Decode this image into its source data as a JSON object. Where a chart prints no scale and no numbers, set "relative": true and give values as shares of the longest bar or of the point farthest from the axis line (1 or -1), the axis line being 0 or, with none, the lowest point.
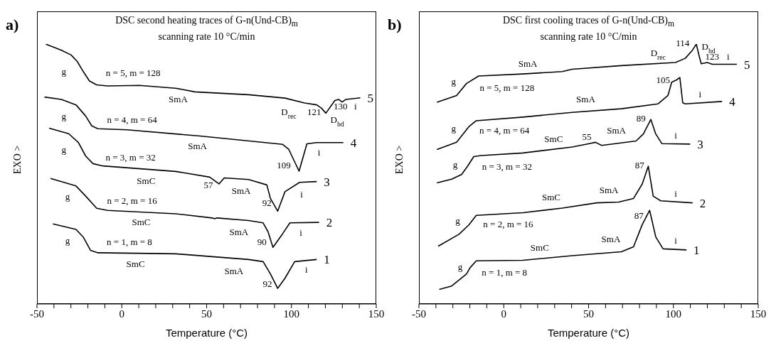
{
  "chart_data": [
    {
      "type": "line",
      "relative": true,
      "title": "DSC second heating traces of G-n(Und-CB)$_{m}$",
      "subtitle": "scanning rate 10 °C/min",
      "xlabel": "Temperature (°C)",
      "ylabel": "EXO >",
      "xlim": [
        -50,
        150
      ],
      "xticks": [
        -50,
        {
          "value": -40,
          "label": null
        },
        {
          "value": -30,
          "label": null
        },
        {
          "value": -20,
          "label": null
        },
        {
          "value": -10,
          "label": null
        },
        0,
        {
          "value": 10,
          "label": null
        },
        {
          "value": 20,
          "label": null
        },
        {
          "value": 30,
          "label": null
        },
        {
          "value": 40,
          "label": null
        },
        50,
        {
          "value": 60,
          "label": null
        },
        {
          "value": 70,
          "label": null
        },
        {
          "value": 80,
          "label": null
        },
        {
          "value": 90,
          "label": null
        },
        100,
        {
          "value": 110,
          "label": null
        },
        {
          "value": 120,
          "label": null
        },
        {
          "value": 130,
          "label": null
        },
        {
          "value": 140,
          "label": null
        },
        150
      ],
      "series": [
        {
          "name": "5",
          "color": "#000000",
          "x": [
            -44.9,
            -35.6,
            -29.9,
            -26.3,
            -22.7,
            -19.1,
            -14.8,
            -8.4,
            10.3,
            31.7,
            43.2,
            74.7,
            96.2,
            107.7,
            114.9,
            117.7,
            120.3,
            125.6,
            127.8,
            129.9,
            132.1,
            140.6
          ],
          "values": [
            1.0,
            0.976,
            0.958,
            0.933,
            0.894,
            0.858,
            0.843,
            0.839,
            0.841,
            0.83,
            0.816,
            0.805,
            0.792,
            0.773,
            0.766,
            0.753,
            0.734,
            0.783,
            0.787,
            0.777,
            0.787,
            0.793
          ]
        },
        {
          "name": "4",
          "color": "#000000",
          "x": [
            -45.6,
            -35.6,
            -27.0,
            -21.3,
            -17.7,
            -14.1,
            3.1,
            46.1,
            94.8,
            98.4,
            104.5,
            109.1,
            114.9,
            130.6
          ],
          "values": [
            0.796,
            0.787,
            0.766,
            0.723,
            0.685,
            0.674,
            0.67,
            0.646,
            0.614,
            0.595,
            0.511,
            0.616,
            0.621,
            0.621
          ]
        },
        {
          "name": "3",
          "color": "#000000",
          "x": [
            -42.8,
            -31.3,
            -25.6,
            -21.3,
            -17.0,
            -11.2,
            31.7,
            51.8,
            57.3,
            60.4,
            74.7,
            85.5,
            87.6,
            91.9,
            96.2,
            104.8,
            114.9
          ],
          "values": [
            0.676,
            0.655,
            0.621,
            0.569,
            0.54,
            0.531,
            0.51,
            0.488,
            0.462,
            0.485,
            0.479,
            0.458,
            0.406,
            0.357,
            0.432,
            0.468,
            0.471
          ]
        },
        {
          "name": "2",
          "color": "#000000",
          "x": [
            -42.0,
            -27.0,
            -21.3,
            -14.8,
            -8.4,
            31.7,
            53.2,
            54.7,
            56.1,
            74.7,
            83.3,
            86.2,
            89.1,
            94.8,
            99.1,
            116.3
          ],
          "values": [
            0.483,
            0.454,
            0.415,
            0.368,
            0.36,
            0.347,
            0.331,
            0.328,
            0.331,
            0.321,
            0.312,
            0.278,
            0.218,
            0.27,
            0.312,
            0.314
          ]
        },
        {
          "name": "1",
          "color": "#000000",
          "x": [
            -40.6,
            -27.0,
            -22.7,
            -18.4,
            -14.1,
            31.7,
            74.7,
            83.3,
            87.6,
            91.9,
            96.2,
            101.9,
            114.9
          ],
          "values": [
            0.308,
            0.287,
            0.257,
            0.206,
            0.197,
            0.193,
            0.171,
            0.163,
            0.116,
            0.06,
            0.099,
            0.163,
            0.171
          ]
        }
      ],
      "annotations": [
        "a)",
        "g",
        "g",
        "g",
        "g",
        "g",
        "n = 5, m = 128",
        "n = 4, m = 64",
        "n = 3, m = 32",
        "n = 2, m = 16",
        "n = 1, m = 8",
        "SmA",
        "SmA",
        "SmA",
        "SmA",
        "SmA",
        "SmC",
        "SmC",
        "SmC",
        "D$_{rec}$",
        "121",
        "130",
        "i",
        "D$_{hd}$",
        "109",
        "i",
        "57",
        "92",
        "i",
        "90",
        "i",
        "92",
        "i"
      ]
    },
    {
      "type": "line",
      "relative": true,
      "title": "DSC first cooling traces of G-n(Und-CB)$_{m}$",
      "subtitle": "scanning rate 10 °C/min",
      "xlabel": "Temperature (°C)",
      "ylabel": "EXO >",
      "xlim": [
        -50,
        150
      ],
      "xticks": [
        -50,
        {
          "value": -40,
          "label": null
        },
        {
          "value": -30,
          "label": null
        },
        {
          "value": -20,
          "label": null
        },
        {
          "value": -10,
          "label": null
        },
        0,
        {
          "value": 10,
          "label": null
        },
        {
          "value": 20,
          "label": null
        },
        {
          "value": 30,
          "label": null
        },
        {
          "value": 40,
          "label": null
        },
        50,
        {
          "value": 60,
          "label": null
        },
        {
          "value": 70,
          "label": null
        },
        {
          "value": 80,
          "label": null
        },
        {
          "value": 90,
          "label": null
        },
        100,
        {
          "value": 110,
          "label": null
        },
        {
          "value": 120,
          "label": null
        },
        {
          "value": 130,
          "label": null
        },
        {
          "value": 140,
          "label": null
        },
        150
      ],
      "series": [
        {
          "name": "5",
          "color": "#000000",
          "x": [
            -39.4,
            -27.8,
            -22.0,
            -14.8,
            11.3,
            34.5,
            40.3,
            69.3,
            101.2,
            107.0,
            111.3,
            113.5,
            115.0,
            116.4,
            120.0,
            122.9,
            137.4
          ],
          "values": [
            0.776,
            0.802,
            0.848,
            0.877,
            0.885,
            0.894,
            0.903,
            0.917,
            0.929,
            0.945,
            0.977,
            1.0,
            0.959,
            0.924,
            0.929,
            0.922,
            0.922
          ]
        },
        {
          "name": "4",
          "color": "#000000",
          "x": [
            -39.4,
            -27.8,
            -20.6,
            -16.2,
            11.3,
            40.3,
            69.3,
            91.0,
            96.8,
            99.0,
            101.9,
            103.8,
            105.5,
            107.0,
            128.7
          ],
          "values": [
            0.594,
            0.622,
            0.682,
            0.705,
            0.719,
            0.737,
            0.751,
            0.77,
            0.802,
            0.853,
            0.862,
            0.871,
            0.774,
            0.77,
            0.779
          ]
        },
        {
          "name": "3",
          "color": "#000000",
          "x": [
            -39.4,
            -30.7,
            -24.9,
            -21.3,
            -17.7,
            -13.3,
            11.3,
            40.3,
            50.4,
            54.1,
            57.7,
            78.0,
            82.3,
            86.7,
            89.6,
            93.2,
            109.9
          ],
          "values": [
            0.466,
            0.48,
            0.498,
            0.53,
            0.567,
            0.571,
            0.581,
            0.604,
            0.617,
            0.622,
            0.61,
            0.627,
            0.654,
            0.71,
            0.654,
            0.617,
            0.615
          ]
        },
        {
          "name": "2",
          "color": "#000000",
          "x": [
            -38.7,
            -26.4,
            -20.6,
            -16.2,
            11.3,
            34.5,
            54.8,
            67.8,
            76.5,
            81.6,
            85.2,
            88.1,
            92.5,
            111.3
          ],
          "values": [
            0.222,
            0.268,
            0.304,
            0.341,
            0.351,
            0.369,
            0.389,
            0.392,
            0.406,
            0.461,
            0.53,
            0.415,
            0.397,
            0.389
          ]
        },
        {
          "name": "1",
          "color": "#000000",
          "x": [
            -38.0,
            -30.7,
            -22.0,
            -19.9,
            -16.2,
            11.3,
            40.3,
            69.3,
            76.5,
            81.6,
            86.0,
            89.6,
            93.9,
            107.7
          ],
          "values": [
            0.056,
            0.069,
            0.115,
            0.139,
            0.166,
            0.168,
            0.186,
            0.201,
            0.22,
            0.305,
            0.36,
            0.258,
            0.212,
            0.208
          ]
        }
      ],
      "annotations": [
        "b)",
        "g",
        "g",
        "g",
        "g",
        "g",
        "n = 5, m = 128",
        "n = 4, m = 64",
        "n = 3, m = 32",
        "n = 2, m = 16",
        "n = 1, m = 8",
        "SmA",
        "SmA",
        "SmA",
        "SmA",
        "SmA",
        "SmC",
        "SmC",
        "SmC",
        "55",
        "89",
        "105",
        "114",
        "D$_{rec}$",
        "D$_{hd}$",
        "123",
        "i",
        "i",
        "i",
        "i",
        "i",
        "87",
        "87"
      ]
    }
  ]
}
